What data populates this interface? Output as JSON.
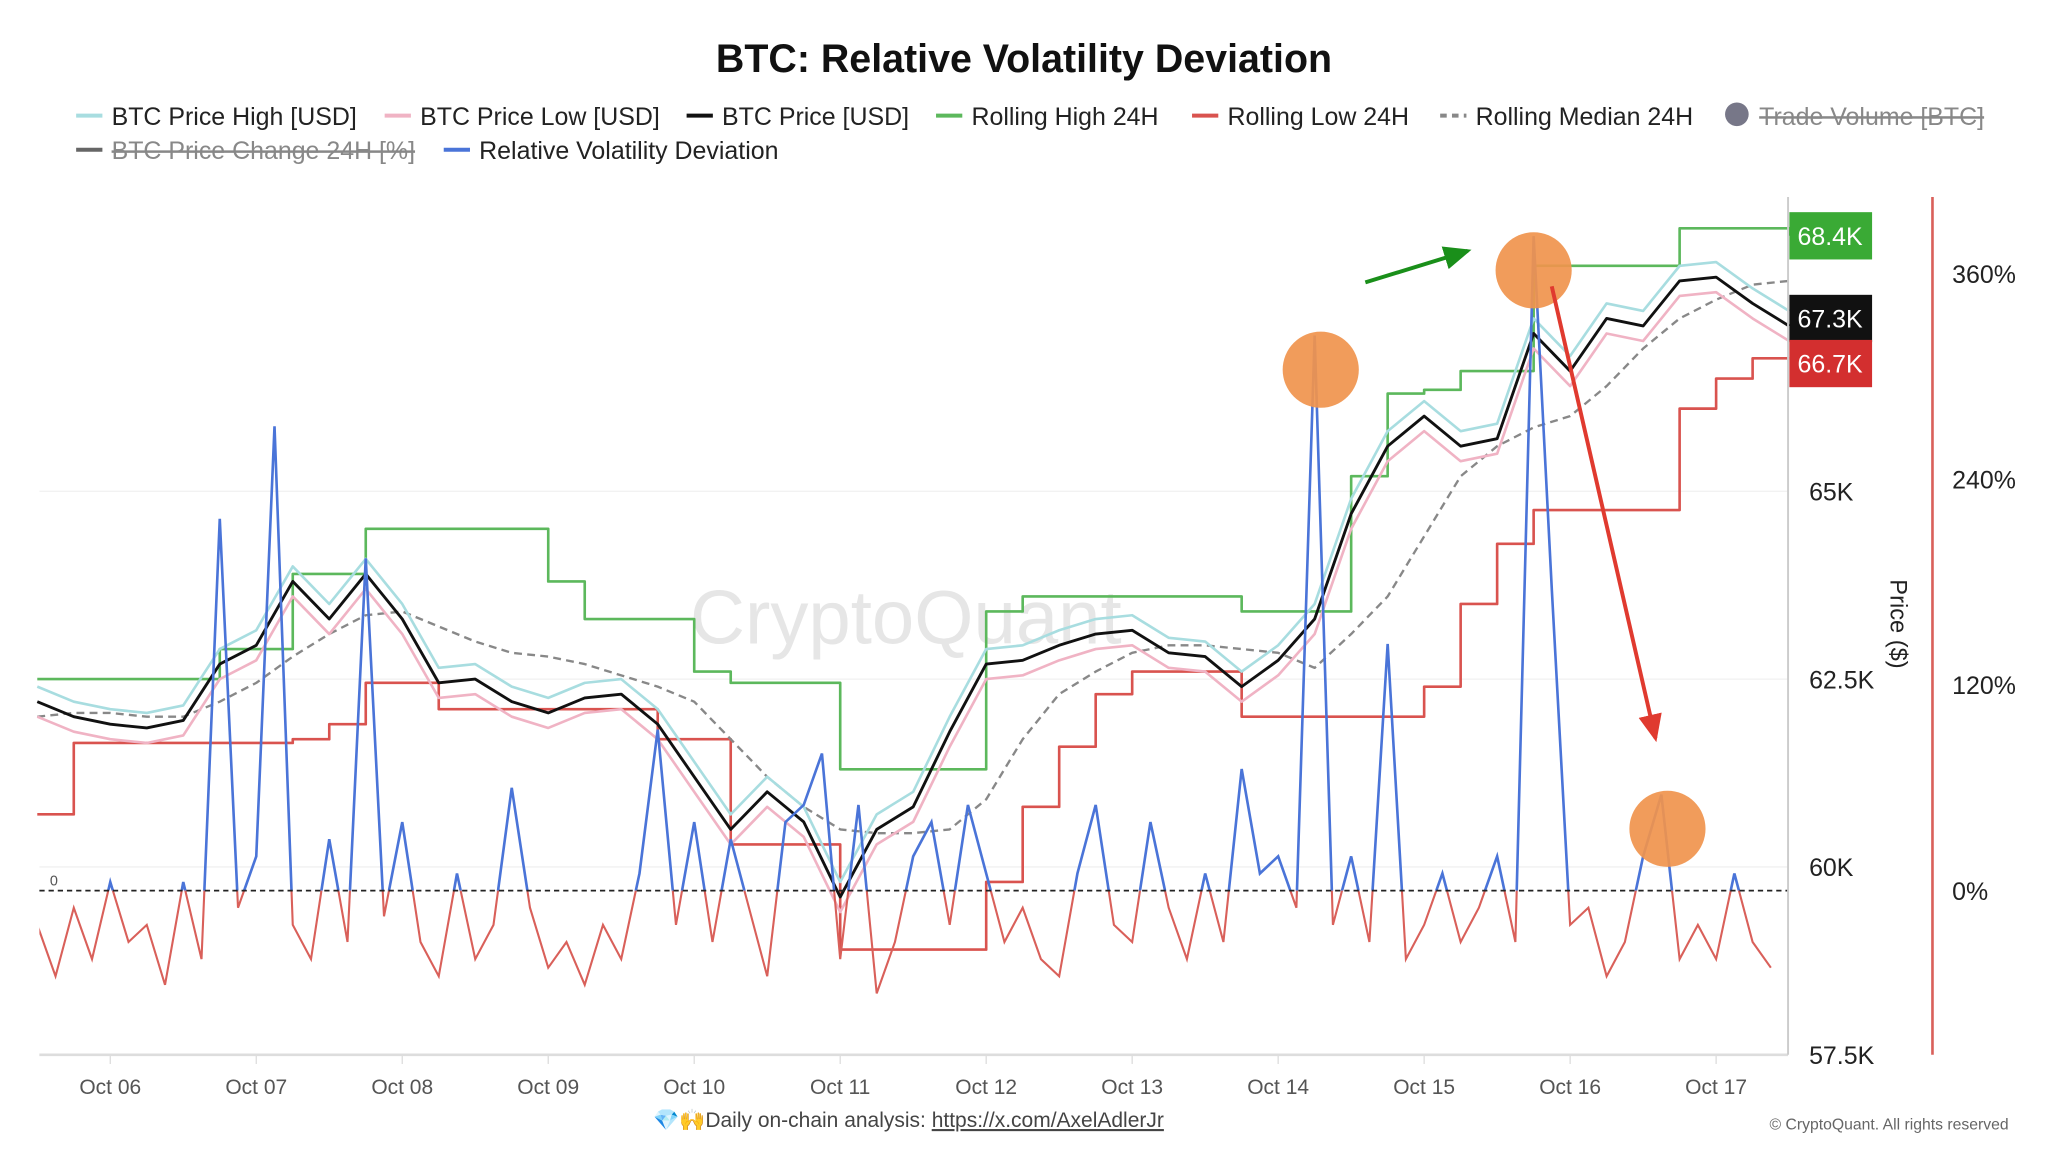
{
  "chart_data": {
    "type": "line",
    "title": "BTC: Relative Volatility Deviation",
    "watermark": "CryptoQuant",
    "legend": [
      {
        "name": "BTC Price High [USD]",
        "color": "#a8dde0",
        "enabled": true
      },
      {
        "name": "BTC Price Low [USD]",
        "color": "#f0b3c4",
        "enabled": true
      },
      {
        "name": "BTC Price [USD]",
        "color": "#111111",
        "enabled": true
      },
      {
        "name": "Rolling High 24H",
        "color": "#5cb85c",
        "enabled": true
      },
      {
        "name": "Rolling Low 24H",
        "color": "#d9534f",
        "enabled": true
      },
      {
        "name": "Rolling Median 24H",
        "color": "#888888",
        "enabled": true,
        "dashed": true
      },
      {
        "name": "Trade Volume [BTC]",
        "color": "#777788",
        "enabled": false
      },
      {
        "name": "BTC Price Change 24H [%]",
        "color": "#666666",
        "enabled": false
      },
      {
        "name": "Relative Volatility Deviation",
        "color": "#4a74d8",
        "enabled": true
      }
    ],
    "x_ticks": [
      "Oct 06",
      "Oct 07",
      "Oct 08",
      "Oct 09",
      "Oct 10",
      "Oct 11",
      "Oct 12",
      "Oct 13",
      "Oct 14",
      "Oct 15",
      "Oct 16",
      "Oct 17"
    ],
    "y_left": {
      "label": "Price ($)",
      "ticks": [
        "57.5K",
        "60K",
        "62.5K",
        "65K"
      ],
      "tick_values": [
        57.5,
        60,
        62.5,
        65
      ],
      "unit": "K USD",
      "range": [
        57.5,
        68.9
      ]
    },
    "y_right": {
      "ticks": [
        "0%",
        "120%",
        "240%",
        "360%"
      ],
      "tick_values": [
        0,
        120,
        240,
        360
      ],
      "range": [
        -80,
        400
      ]
    },
    "zero_label": "0",
    "last_value_badges": [
      {
        "label": "68.4K",
        "value": 68.4,
        "color": "#3aaa35"
      },
      {
        "label": "67.3K",
        "value": 67.3,
        "color": "#111111"
      },
      {
        "label": "66.7K",
        "value": 66.7,
        "color": "#d32f2f"
      }
    ],
    "price_series": {
      "start": "Oct 05 12:00",
      "step_hours": 6,
      "btc_price": [
        62.2,
        62.0,
        61.9,
        61.85,
        61.95,
        62.7,
        62.95,
        63.8,
        63.3,
        63.9,
        63.3,
        62.45,
        62.5,
        62.2,
        62.05,
        62.25,
        62.3,
        61.9,
        61.2,
        60.5,
        61.0,
        60.6,
        59.6,
        60.5,
        60.8,
        61.8,
        62.7,
        62.75,
        62.95,
        63.1,
        63.15,
        62.85,
        62.8,
        62.4,
        62.75,
        63.3,
        64.7,
        65.6,
        66.0,
        65.6,
        65.7,
        67.1,
        66.6,
        67.3,
        67.2,
        67.8,
        67.85,
        67.5,
        67.2
      ],
      "btc_price_high": [
        62.4,
        62.2,
        62.1,
        62.05,
        62.15,
        62.9,
        63.15,
        64.0,
        63.5,
        64.1,
        63.5,
        62.65,
        62.7,
        62.4,
        62.25,
        62.45,
        62.5,
        62.1,
        61.4,
        60.7,
        61.2,
        60.8,
        59.8,
        60.7,
        61.0,
        62.0,
        62.9,
        62.95,
        63.15,
        63.3,
        63.35,
        63.05,
        63.0,
        62.6,
        62.95,
        63.5,
        64.9,
        65.8,
        66.2,
        65.8,
        65.9,
        67.3,
        66.8,
        67.5,
        67.4,
        68.0,
        68.05,
        67.7,
        67.4
      ],
      "btc_price_low": [
        62.0,
        61.8,
        61.7,
        61.65,
        61.75,
        62.5,
        62.75,
        63.6,
        63.1,
        63.7,
        63.1,
        62.25,
        62.3,
        62.0,
        61.85,
        62.05,
        62.1,
        61.7,
        61.0,
        60.3,
        60.8,
        60.4,
        59.4,
        60.3,
        60.6,
        61.6,
        62.5,
        62.55,
        62.75,
        62.9,
        62.95,
        62.65,
        62.6,
        62.2,
        62.55,
        63.1,
        64.5,
        65.4,
        65.8,
        65.4,
        65.5,
        66.9,
        66.4,
        67.1,
        67.0,
        67.6,
        67.65,
        67.3,
        67.0
      ],
      "rolling_high_24h": [
        62.5,
        62.5,
        62.5,
        62.5,
        62.5,
        62.9,
        62.9,
        63.9,
        63.9,
        64.5,
        64.5,
        64.5,
        64.5,
        64.5,
        63.8,
        63.3,
        63.3,
        63.3,
        62.6,
        62.45,
        62.45,
        62.45,
        61.3,
        61.3,
        61.3,
        61.3,
        63.4,
        63.6,
        63.6,
        63.6,
        63.6,
        63.6,
        63.6,
        63.4,
        63.4,
        63.4,
        65.2,
        66.3,
        66.35,
        66.6,
        66.6,
        68.0,
        68.0,
        68.0,
        68.0,
        68.5,
        68.5,
        68.5,
        68.4
      ],
      "rolling_low_24h": [
        60.7,
        61.65,
        61.65,
        61.65,
        61.65,
        61.65,
        61.65,
        61.7,
        61.9,
        62.45,
        62.45,
        62.1,
        62.1,
        62.1,
        62.1,
        62.1,
        62.1,
        61.7,
        61.7,
        60.3,
        60.3,
        60.3,
        58.9,
        58.9,
        58.9,
        58.9,
        59.8,
        60.8,
        61.6,
        62.3,
        62.6,
        62.6,
        62.6,
        62.0,
        62.0,
        62.0,
        62.0,
        62.0,
        62.4,
        63.5,
        64.3,
        64.75,
        64.75,
        64.75,
        64.75,
        66.1,
        66.5,
        66.77,
        66.77
      ],
      "rolling_median_24h": [
        62.0,
        62.05,
        62.05,
        62.0,
        62.0,
        62.2,
        62.45,
        62.8,
        63.1,
        63.35,
        63.4,
        63.2,
        63.0,
        62.85,
        62.8,
        62.7,
        62.55,
        62.4,
        62.2,
        61.7,
        61.2,
        60.8,
        60.5,
        60.45,
        60.45,
        60.5,
        60.9,
        61.7,
        62.3,
        62.6,
        62.85,
        62.95,
        62.95,
        62.9,
        62.85,
        62.65,
        63.1,
        63.6,
        64.4,
        65.2,
        65.6,
        65.85,
        66.0,
        66.4,
        66.9,
        67.3,
        67.55,
        67.75,
        67.8
      ]
    },
    "rvd_series": {
      "start": "Oct 05 12:00",
      "step_hours": 3,
      "unit": "%",
      "color_positive": "#4a74d8",
      "color_negative": "#d9605a",
      "values": [
        -20,
        -50,
        -10,
        -40,
        5,
        -30,
        -20,
        -55,
        5,
        -40,
        217,
        -10,
        20,
        271,
        -20,
        -40,
        30,
        -30,
        194,
        -15,
        40,
        -30,
        -50,
        10,
        -40,
        -20,
        60,
        -10,
        -45,
        -30,
        -55,
        -20,
        -40,
        10,
        94,
        -20,
        40,
        -30,
        30,
        -10,
        -50,
        40,
        50,
        80,
        -40,
        50,
        -60,
        -30,
        20,
        40,
        -20,
        50,
        10,
        -30,
        -10,
        -40,
        -50,
        10,
        50,
        -20,
        -30,
        40,
        -10,
        -40,
        10,
        -30,
        71,
        10,
        20,
        -10,
        324,
        -20,
        20,
        -30,
        144,
        -40,
        -20,
        10,
        -30,
        -10,
        20,
        -30,
        382,
        175,
        -20,
        -10,
        -50,
        -30,
        20,
        56,
        -40,
        -20,
        -40,
        10,
        -30,
        -45
      ]
    },
    "annotations": {
      "highlight_color": "#f0944d",
      "highlights_at": [
        {
          "time": "Oct 14 07:00",
          "value_pct": 324
        },
        {
          "time": "Oct 15 18:00",
          "value_pct": 382
        },
        {
          "time": "Oct 16 16:00",
          "value_pct": 56
        }
      ],
      "arrows": [
        {
          "color": "#1a8f1a",
          "direction": "up-right"
        },
        {
          "color": "#e03a2f",
          "direction": "down-right"
        }
      ]
    },
    "grid": true
  },
  "footer": {
    "icons": "💎🙌",
    "text": "Daily on-chain analysis: ",
    "link": "https://x.com/AxelAdlerJr",
    "copyright": "© CryptoQuant. All rights reserved"
  }
}
